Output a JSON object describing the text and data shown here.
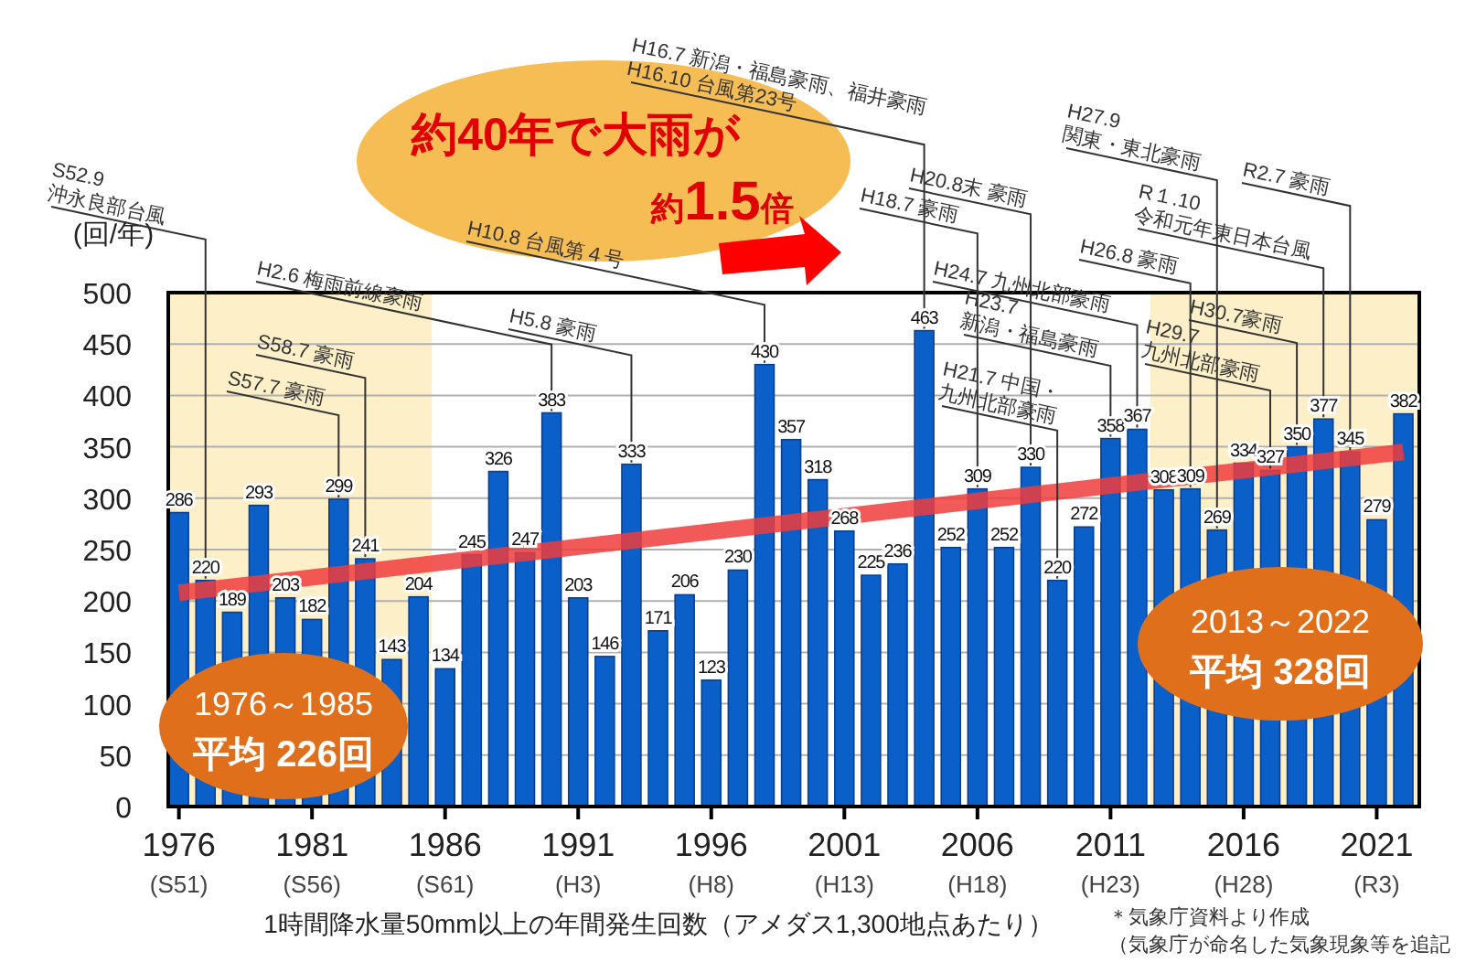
{
  "chart_data": {
    "type": "bar",
    "xlabel": "1時間降水量50mm以上の年間発生回数（アメダス1,300地点あたり）",
    "ylabel": "(回/年)",
    "x": [
      1976,
      1977,
      1978,
      1979,
      1980,
      1981,
      1982,
      1983,
      1984,
      1985,
      1986,
      1987,
      1988,
      1989,
      1990,
      1991,
      1992,
      1993,
      1994,
      1995,
      1996,
      1997,
      1998,
      1999,
      2000,
      2001,
      2002,
      2003,
      2004,
      2005,
      2006,
      2007,
      2008,
      2009,
      2010,
      2011,
      2012,
      2013,
      2014,
      2015,
      2016,
      2017,
      2018,
      2019,
      2020,
      2021,
      2022
    ],
    "series": [
      {
        "color": "#0a5fc8",
        "values": [
          286,
          220,
          189,
          293,
          203,
          182,
          299,
          241,
          143,
          204,
          134,
          245,
          326,
          247,
          383,
          203,
          146,
          333,
          171,
          206,
          123,
          230,
          430,
          357,
          318,
          268,
          225,
          236,
          463,
          252,
          309,
          252,
          330,
          220,
          272,
          358,
          367,
          308,
          309,
          269,
          334,
          327,
          350,
          377,
          345,
          279,
          382
        ],
        "value_labels": [
          "286",
          "220",
          "189",
          "293",
          "203",
          "182",
          "299",
          "241",
          "143",
          "204",
          "134",
          "245",
          "326",
          "247",
          "383",
          "203",
          "146",
          "333",
          "171",
          "206",
          "123",
          "230",
          "430",
          "357",
          "318",
          "268",
          "225",
          "236",
          "463",
          "252",
          "309",
          "252",
          "330",
          "220",
          "272",
          "358",
          "367",
          "308",
          "309",
          "269",
          "334",
          "327",
          "350",
          "377",
          "345",
          "279",
          "382"
        ]
      },
      {
        "type": "line",
        "x": [
          1976,
          2022
        ],
        "values": [
          208,
          345
        ],
        "color": "#f03c3c"
      }
    ],
    "xlim": [
      1975.6,
      2022.6
    ],
    "xticks": [
      1976,
      1981,
      1986,
      1991,
      1996,
      2001,
      2006,
      2011,
      2016,
      2021
    ],
    "ylim": [
      0,
      500
    ],
    "yticks": [
      0,
      50,
      100,
      150,
      200,
      250,
      300,
      350,
      400,
      450,
      500
    ],
    "grid": "y",
    "bands": [
      {
        "axis": "x",
        "from": 1975.6,
        "to": 1985.5,
        "label": "1976～1985\n平均 226回",
        "color": "#fdf0c8"
      },
      {
        "axis": "x",
        "from": 2012.5,
        "to": 2022.6,
        "label": "2013～2022\n平均 328回",
        "color": "#fdf0c8"
      }
    ],
    "annotations": [
      "約40年で大雨が",
      "約1.5倍",
      "＊気象庁資料より作成",
      "（気象庁が命名した気象現象等を追記",
      "(S51)",
      "(S56)",
      "(S61)",
      "(H3)",
      "(H8)",
      "(H13)",
      "(H18)",
      "(H23)",
      "(H28)",
      "(R3)",
      {
        "text": "S52.9\n沖永良部台風",
        "x": 1977,
        "y": 220
      },
      {
        "text": "S57.7 豪雨",
        "x": 1982,
        "y": 299
      },
      {
        "text": "S58.7 豪雨",
        "x": 1983,
        "y": 241
      },
      {
        "text": "H2.6 梅雨前線豪雨",
        "x": 1990,
        "y": 383
      },
      {
        "text": "H5.8 豪雨",
        "x": 1993,
        "y": 333
      },
      {
        "text": "H10.8 台風第４号",
        "x": 1998,
        "y": 430
      },
      {
        "text": "H16.7 新潟・福島豪雨、福井豪雨\nH16.10 台風第23号",
        "x": 2004,
        "y": 463
      },
      {
        "text": "H18.7 豪雨",
        "x": 2006,
        "y": 309
      },
      {
        "text": "H20.8末 豪雨",
        "x": 2008,
        "y": 330
      },
      {
        "text": "H21.7 中国・\n九州北部豪雨",
        "x": 2009,
        "y": 220
      },
      {
        "text": "H23.7\n新潟・福島豪雨",
        "x": 2011,
        "y": 358
      },
      {
        "text": "H24.7 九州北部豪雨",
        "x": 2012,
        "y": 367
      },
      {
        "text": "H26.8 豪雨",
        "x": 2014,
        "y": 309
      },
      {
        "text": "H27.9\n関東・東北豪雨",
        "x": 2015,
        "y": 269
      },
      {
        "text": "H29.7\n九州北部豪雨",
        "x": 2017,
        "y": 327
      },
      {
        "text": "H30.7豪雨",
        "x": 2018,
        "y": 350
      },
      {
        "text": "R１.10\n令和元年東日本台風",
        "x": 2019,
        "y": 377
      },
      {
        "text": "R2.7 豪雨",
        "x": 2020,
        "y": 345
      }
    ]
  }
}
